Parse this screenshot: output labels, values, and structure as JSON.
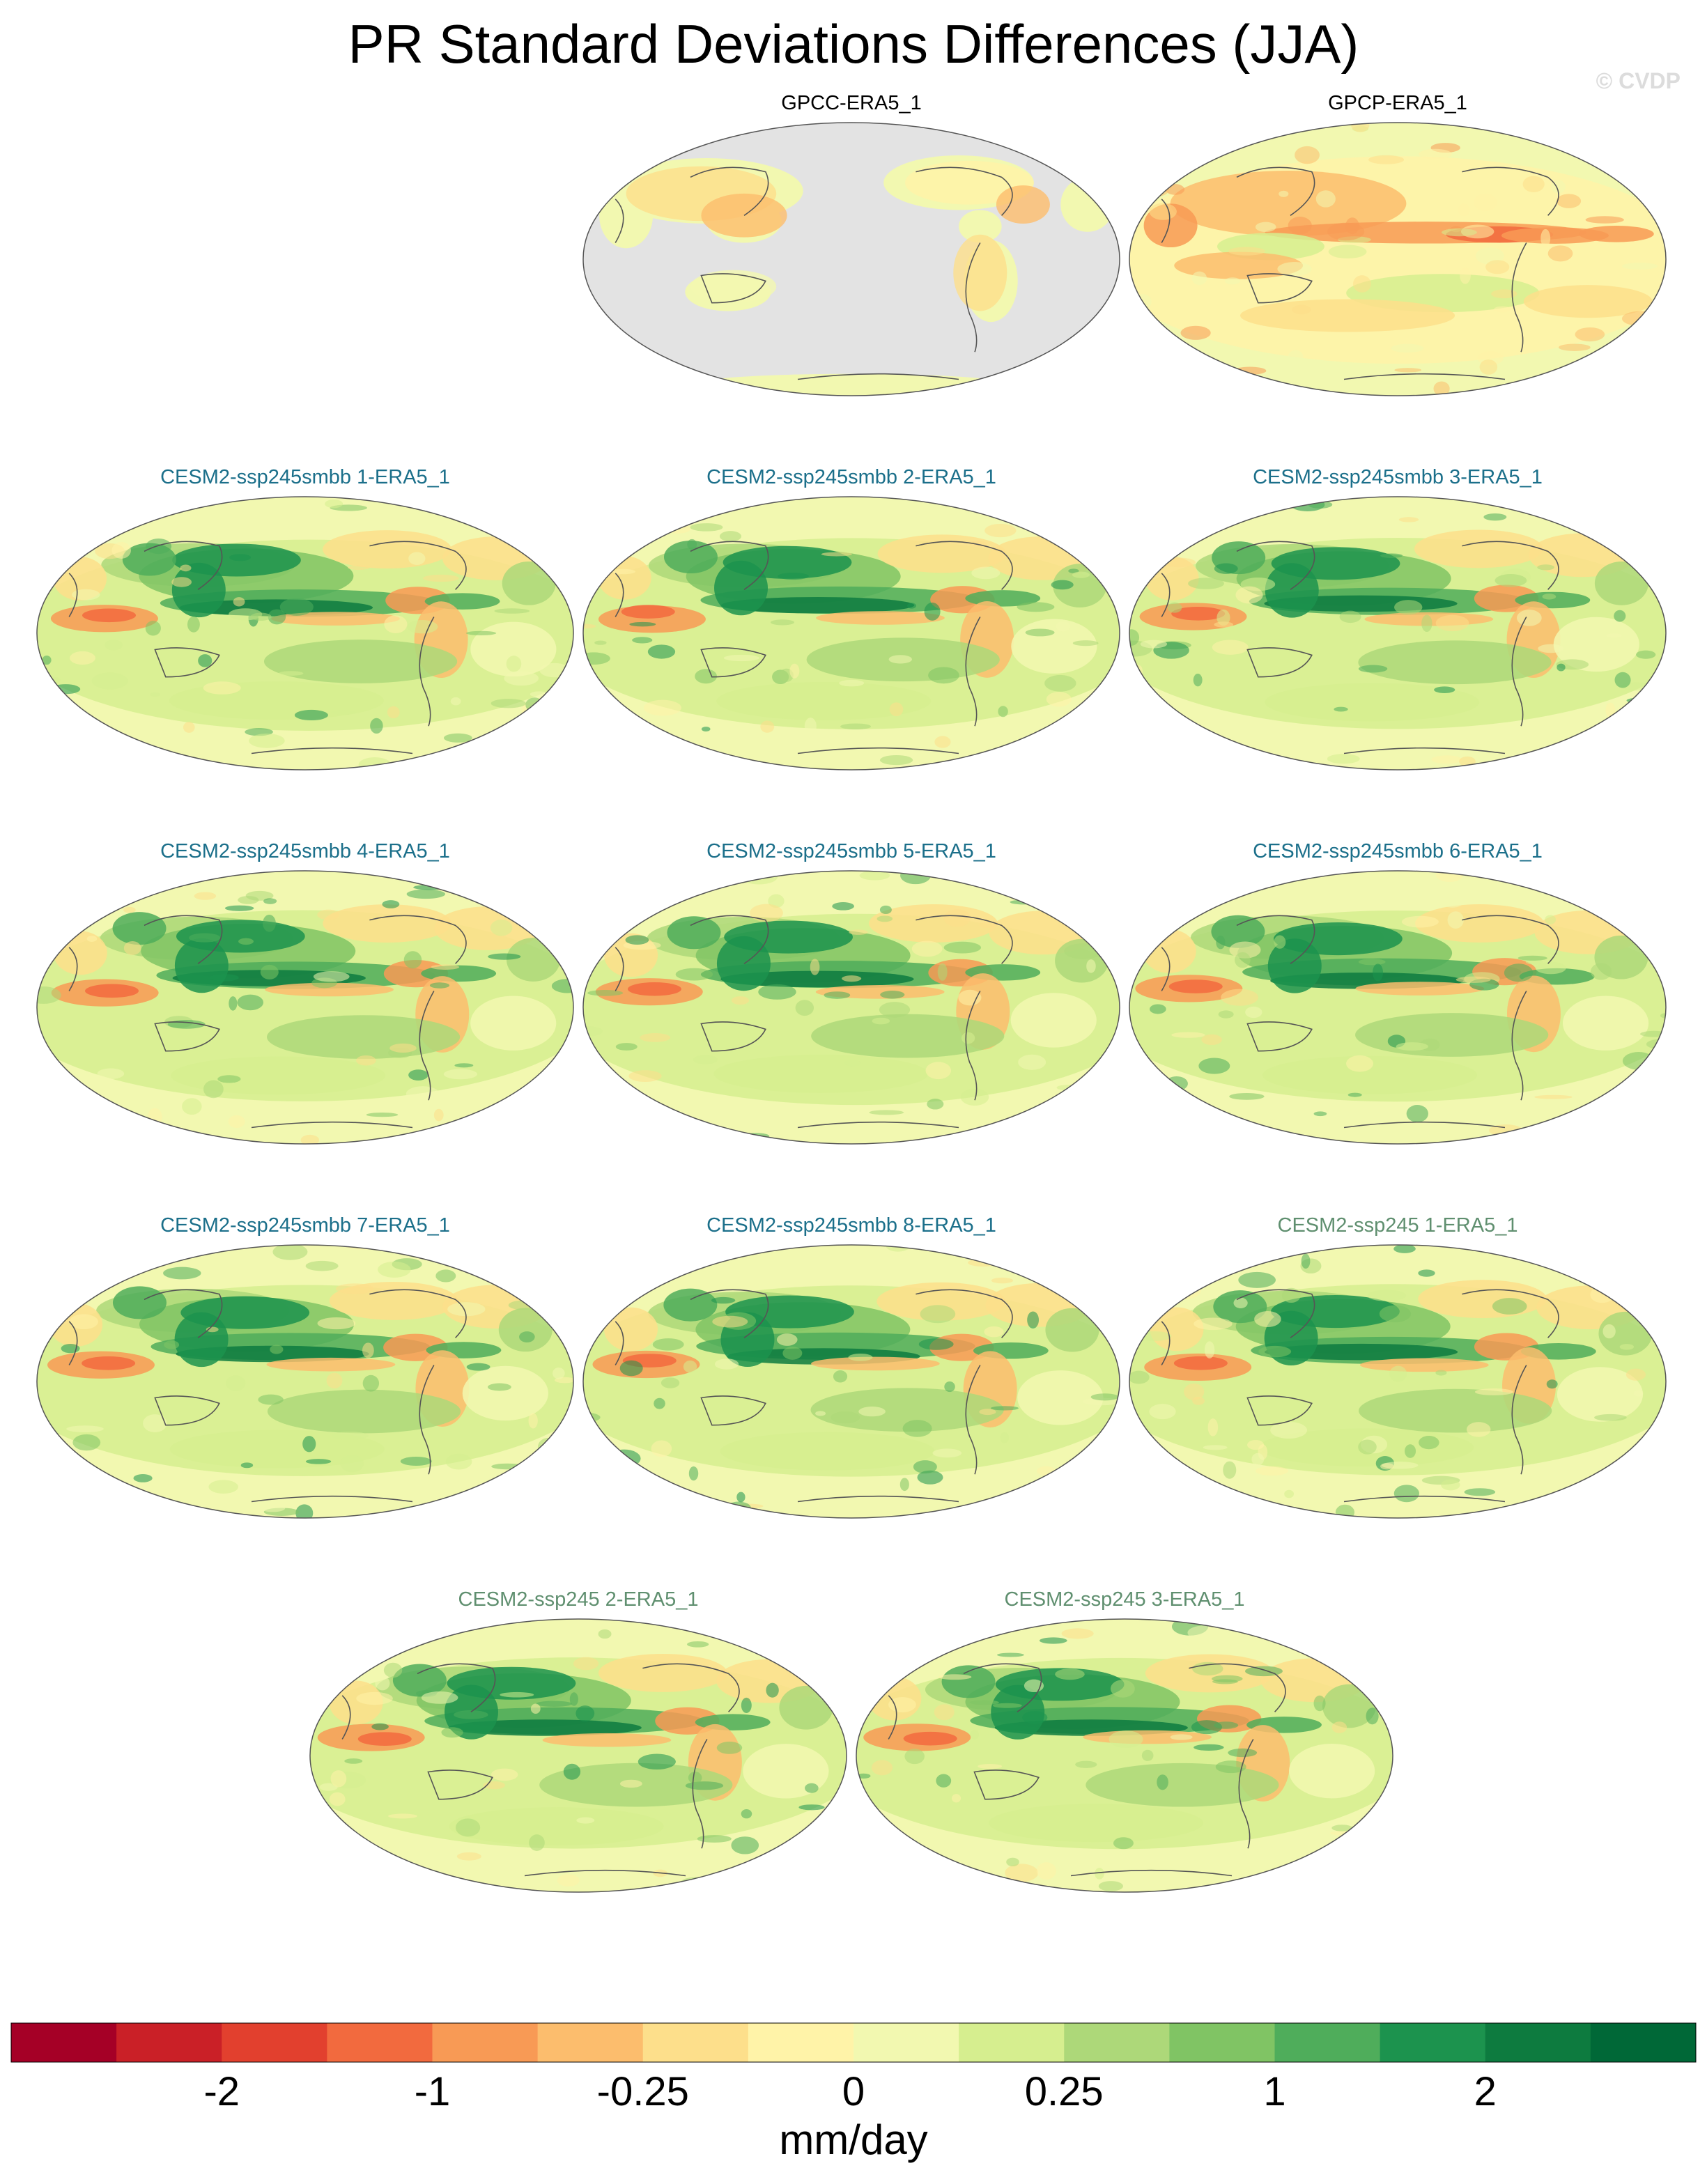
{
  "figure": {
    "title": "PR Standard Deviations Differences (JJA)",
    "watermark": "© CVDP"
  },
  "chart_data": {
    "type": "heatmap",
    "variable": "PR",
    "season": "JJA",
    "projection": "global map (Robinson-like ellipse)",
    "units": "mm/day",
    "panels": [
      {
        "title": "GPCC-ERA5_1",
        "title_color": "#000000",
        "ocean_masked": true,
        "pattern": "obs_land"
      },
      {
        "title": "GPCP-ERA5_1",
        "title_color": "#000000",
        "ocean_masked": false,
        "pattern": "obs_gpcp"
      },
      {
        "title": "CESM2-ssp245smbb 1-ERA5_1",
        "title_color": "#1b6f8a",
        "ocean_masked": false,
        "pattern": "model"
      },
      {
        "title": "CESM2-ssp245smbb 2-ERA5_1",
        "title_color": "#1b6f8a",
        "ocean_masked": false,
        "pattern": "model"
      },
      {
        "title": "CESM2-ssp245smbb 3-ERA5_1",
        "title_color": "#1b6f8a",
        "ocean_masked": false,
        "pattern": "model"
      },
      {
        "title": "CESM2-ssp245smbb 4-ERA5_1",
        "title_color": "#1b6f8a",
        "ocean_masked": false,
        "pattern": "model"
      },
      {
        "title": "CESM2-ssp245smbb 5-ERA5_1",
        "title_color": "#1b6f8a",
        "ocean_masked": false,
        "pattern": "model"
      },
      {
        "title": "CESM2-ssp245smbb 6-ERA5_1",
        "title_color": "#1b6f8a",
        "ocean_masked": false,
        "pattern": "model"
      },
      {
        "title": "CESM2-ssp245smbb 7-ERA5_1",
        "title_color": "#1b6f8a",
        "ocean_masked": false,
        "pattern": "model"
      },
      {
        "title": "CESM2-ssp245smbb 8-ERA5_1",
        "title_color": "#1b6f8a",
        "ocean_masked": false,
        "pattern": "model"
      },
      {
        "title": "CESM2-ssp245 1-ERA5_1",
        "title_color": "#5f8f6f",
        "ocean_masked": false,
        "pattern": "model"
      },
      {
        "title": "CESM2-ssp245 2-ERA5_1",
        "title_color": "#5f8f6f",
        "ocean_masked": false,
        "pattern": "model"
      },
      {
        "title": "CESM2-ssp245 3-ERA5_1",
        "title_color": "#5f8f6f",
        "ocean_masked": false,
        "pattern": "model"
      }
    ],
    "colorbar": {
      "label": "mm/day",
      "colors": [
        "#a50026",
        "#ca2027",
        "#e2402e",
        "#f26a3e",
        "#f89a55",
        "#fcbd6d",
        "#fddf8b",
        "#fff3a8",
        "#f2f8b0",
        "#d6ee8f",
        "#add879",
        "#80c464",
        "#4fad5b",
        "#1c934e",
        "#0d7b3f",
        "#006837"
      ],
      "tick_labels": [
        "-2",
        "-1",
        "-0.25",
        "0",
        "0.25",
        "1",
        "2"
      ],
      "tick_boundaries": [
        2,
        4,
        6,
        8,
        10,
        12,
        14
      ]
    },
    "ocean_mask_color": "#e3e3e3",
    "coastline_color": "#555555"
  }
}
